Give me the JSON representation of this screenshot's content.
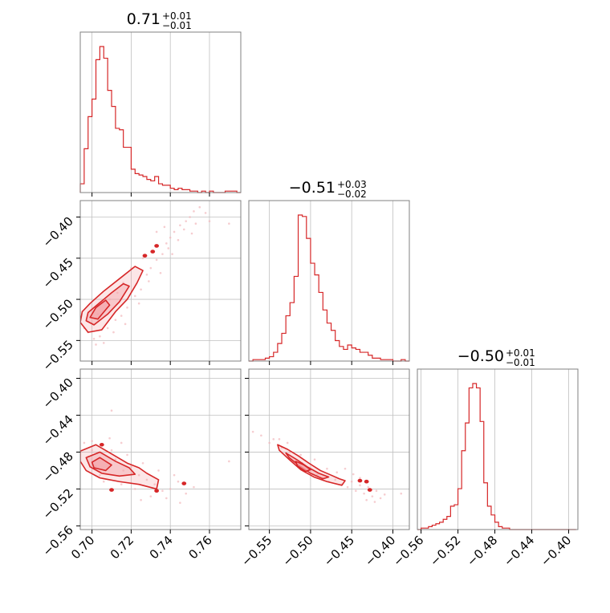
{
  "colors": {
    "accent": "#d62728",
    "accent_fill": "#f4a4a8",
    "scatter": "#f2b8bc"
  },
  "chart_data": {
    "type": "corner",
    "grid": true,
    "parameters": [
      {
        "median": "0.71",
        "plus": "+0.01",
        "minus": "−0.01",
        "range": [
          0.694,
          0.776
        ]
      },
      {
        "median": "−0.51",
        "plus": "+0.03",
        "minus": "−0.02",
        "range": [
          -0.575,
          -0.38
        ]
      },
      {
        "median": "−0.50",
        "plus": "+0.01",
        "minus": "−0.01",
        "range": [
          -0.564,
          -0.39
        ]
      }
    ],
    "ticks": {
      "p0": {
        "values": [
          0.7,
          0.72,
          0.74,
          0.76
        ],
        "labels": [
          "0.70",
          "0.72",
          "0.74",
          "0.76"
        ]
      },
      "p1": {
        "values": [
          -0.55,
          -0.5,
          -0.45,
          -0.4
        ],
        "labels": [
          "−0.55",
          "−0.50",
          "−0.45",
          "−0.40"
        ]
      },
      "p2": {
        "values": [
          -0.56,
          -0.52,
          -0.48,
          -0.44,
          -0.4
        ],
        "labels": [
          "−0.56",
          "−0.52",
          "−0.48",
          "−0.44",
          "−0.40"
        ]
      }
    },
    "histograms": [
      {
        "param": 0,
        "bin_edges": [
          0.694,
          0.696,
          0.698,
          0.7,
          0.702,
          0.704,
          0.706,
          0.708,
          0.71,
          0.712,
          0.714,
          0.716,
          0.718,
          0.72,
          0.722,
          0.724,
          0.726,
          0.728,
          0.73,
          0.732,
          0.734,
          0.736,
          0.738,
          0.74,
          0.742,
          0.744,
          0.746,
          0.748,
          0.75,
          0.752,
          0.754,
          0.756,
          0.758,
          0.76,
          0.762,
          0.764,
          0.766,
          0.768,
          0.77,
          0.772,
          0.774,
          0.776
        ],
        "counts": [
          6,
          30,
          52,
          64,
          91,
          100,
          92,
          70,
          59,
          44,
          43,
          31,
          31,
          16,
          13,
          12,
          11,
          9,
          8,
          11,
          6,
          5,
          5,
          3,
          2,
          3,
          2,
          2,
          1,
          1,
          0,
          1,
          0,
          1,
          0,
          0,
          0,
          1,
          1,
          1,
          0
        ]
      },
      {
        "param": 1,
        "bin_edges": [
          -0.575,
          -0.57,
          -0.565,
          -0.56,
          -0.555,
          -0.55,
          -0.545,
          -0.54,
          -0.535,
          -0.53,
          -0.525,
          -0.52,
          -0.515,
          -0.51,
          -0.505,
          -0.5,
          -0.495,
          -0.49,
          -0.485,
          -0.48,
          -0.475,
          -0.47,
          -0.465,
          -0.46,
          -0.455,
          -0.45,
          -0.445,
          -0.44,
          -0.435,
          -0.43,
          -0.425,
          -0.42,
          -0.415,
          -0.41,
          -0.405,
          -0.4,
          -0.395,
          -0.39,
          -0.385,
          -0.38
        ],
        "counts": [
          0,
          1,
          1,
          1,
          2,
          3,
          6,
          12,
          19,
          31,
          40,
          58,
          100,
          99,
          84,
          67,
          59,
          47,
          35,
          26,
          21,
          14,
          10,
          8,
          11,
          9,
          8,
          6,
          6,
          4,
          2,
          2,
          1,
          1,
          1,
          0,
          0,
          1,
          0
        ]
      },
      {
        "param": 2,
        "bin_edges": [
          -0.564,
          -0.56,
          -0.556,
          -0.552,
          -0.548,
          -0.544,
          -0.54,
          -0.536,
          -0.532,
          -0.528,
          -0.524,
          -0.52,
          -0.516,
          -0.512,
          -0.508,
          -0.504,
          -0.5,
          -0.496,
          -0.492,
          -0.488,
          -0.484,
          -0.48,
          -0.476,
          -0.472,
          -0.468,
          -0.464,
          -0.46,
          -0.456,
          -0.452,
          -0.448,
          -0.444,
          -0.44,
          -0.436,
          -0.432,
          -0.428,
          -0.424,
          -0.42,
          -0.416,
          -0.412,
          -0.408,
          -0.404,
          -0.4,
          -0.396,
          -0.392
        ],
        "counts": [
          0,
          1,
          1,
          2,
          3,
          4,
          5,
          7,
          9,
          16,
          17,
          28,
          54,
          73,
          97,
          100,
          97,
          74,
          32,
          16,
          10,
          5,
          2,
          1,
          1,
          0,
          0,
          0,
          0,
          0,
          0,
          0,
          0,
          0,
          0,
          0,
          0,
          0,
          0,
          0,
          0,
          0,
          0
        ]
      }
    ],
    "pairs": [
      {
        "x_param": 0,
        "y_param": 1,
        "contours": [
          [
            [
              0.694,
              -0.528
            ],
            [
              0.698,
              -0.54
            ],
            [
              0.705,
              -0.537
            ],
            [
              0.712,
              -0.515
            ],
            [
              0.718,
              -0.5
            ],
            [
              0.723,
              -0.48
            ],
            [
              0.726,
              -0.465
            ],
            [
              0.722,
              -0.46
            ],
            [
              0.714,
              -0.475
            ],
            [
              0.706,
              -0.49
            ],
            [
              0.699,
              -0.505
            ],
            [
              0.695,
              -0.515
            ]
          ],
          [
            [
              0.697,
              -0.526
            ],
            [
              0.701,
              -0.531
            ],
            [
              0.708,
              -0.518
            ],
            [
              0.714,
              -0.503
            ],
            [
              0.719,
              -0.484
            ],
            [
              0.716,
              -0.481
            ],
            [
              0.71,
              -0.492
            ],
            [
              0.703,
              -0.506
            ],
            [
              0.698,
              -0.516
            ]
          ],
          [
            [
              0.699,
              -0.522
            ],
            [
              0.703,
              -0.524
            ],
            [
              0.709,
              -0.507
            ],
            [
              0.707,
              -0.501
            ],
            [
              0.702,
              -0.51
            ]
          ]
        ],
        "islands": [
          [
            0.727,
            -0.447
          ],
          [
            0.731,
            -0.442
          ],
          [
            0.733,
            -0.435
          ]
        ],
        "scatter": [
          [
            0.698,
            -0.54
          ],
          [
            0.701,
            -0.548
          ],
          [
            0.704,
            -0.545
          ],
          [
            0.708,
            -0.535
          ],
          [
            0.712,
            -0.525
          ],
          [
            0.715,
            -0.52
          ],
          [
            0.718,
            -0.51
          ],
          [
            0.722,
            -0.496
          ],
          [
            0.725,
            -0.488
          ],
          [
            0.728,
            -0.47
          ],
          [
            0.73,
            -0.462
          ],
          [
            0.733,
            -0.452
          ],
          [
            0.736,
            -0.445
          ],
          [
            0.738,
            -0.432
          ],
          [
            0.74,
            -0.425
          ],
          [
            0.742,
            -0.418
          ],
          [
            0.745,
            -0.41
          ],
          [
            0.748,
            -0.405
          ],
          [
            0.75,
            -0.4
          ],
          [
            0.752,
            -0.393
          ],
          [
            0.755,
            -0.388
          ],
          [
            0.758,
            -0.395
          ],
          [
            0.76,
            -0.405
          ],
          [
            0.735,
            -0.468
          ],
          [
            0.729,
            -0.478
          ],
          [
            0.724,
            -0.505
          ],
          [
            0.717,
            -0.53
          ],
          [
            0.711,
            -0.54
          ],
          [
            0.706,
            -0.553
          ],
          [
            0.72,
            -0.462
          ],
          [
            0.726,
            -0.45
          ],
          [
            0.733,
            -0.418
          ],
          [
            0.739,
            -0.438
          ],
          [
            0.744,
            -0.428
          ],
          [
            0.747,
            -0.415
          ],
          [
            0.753,
            -0.408
          ],
          [
            0.716,
            -0.48
          ],
          [
            0.713,
            -0.492
          ],
          [
            0.709,
            -0.5
          ],
          [
            0.703,
            -0.518
          ],
          [
            0.696,
            -0.535
          ],
          [
            0.702,
            -0.555
          ],
          [
            0.741,
            -0.445
          ],
          [
            0.737,
            -0.412
          ],
          [
            0.751,
            -0.42
          ],
          [
            0.77,
            -0.408
          ]
        ]
      },
      {
        "x_param": 0,
        "y_param": 2,
        "contours": [
          [
            [
              0.694,
              -0.479
            ],
            [
              0.702,
              -0.472
            ],
            [
              0.71,
              -0.482
            ],
            [
              0.718,
              -0.492
            ],
            [
              0.724,
              -0.497
            ],
            [
              0.728,
              -0.503
            ],
            [
              0.734,
              -0.51
            ],
            [
              0.733,
              -0.52
            ],
            [
              0.724,
              -0.515
            ],
            [
              0.714,
              -0.512
            ],
            [
              0.704,
              -0.508
            ],
            [
              0.697,
              -0.5
            ],
            [
              0.694,
              -0.49
            ]
          ],
          [
            [
              0.697,
              -0.486
            ],
            [
              0.704,
              -0.48
            ],
            [
              0.712,
              -0.49
            ],
            [
              0.719,
              -0.497
            ],
            [
              0.722,
              -0.504
            ],
            [
              0.714,
              -0.506
            ],
            [
              0.705,
              -0.503
            ],
            [
              0.699,
              -0.496
            ]
          ],
          [
            [
              0.7,
              -0.491
            ],
            [
              0.704,
              -0.486
            ],
            [
              0.71,
              -0.494
            ],
            [
              0.707,
              -0.5
            ],
            [
              0.701,
              -0.497
            ]
          ]
        ],
        "islands": [
          [
            0.705,
            -0.472
          ],
          [
            0.747,
            -0.514
          ],
          [
            0.71,
            -0.521
          ],
          [
            0.733,
            -0.522
          ]
        ],
        "scatter": [
          [
            0.696,
            -0.47
          ],
          [
            0.7,
            -0.478
          ],
          [
            0.704,
            -0.505
          ],
          [
            0.708,
            -0.498
          ],
          [
            0.712,
            -0.488
          ],
          [
            0.716,
            -0.5
          ],
          [
            0.72,
            -0.496
          ],
          [
            0.724,
            -0.505
          ],
          [
            0.728,
            -0.51
          ],
          [
            0.732,
            -0.515
          ],
          [
            0.736,
            -0.522
          ],
          [
            0.74,
            -0.52
          ],
          [
            0.744,
            -0.512
          ],
          [
            0.748,
            -0.525
          ],
          [
            0.752,
            -0.518
          ],
          [
            0.738,
            -0.53
          ],
          [
            0.73,
            -0.528
          ],
          [
            0.722,
            -0.52
          ],
          [
            0.715,
            -0.515
          ],
          [
            0.706,
            -0.512
          ],
          [
            0.702,
            -0.495
          ],
          [
            0.71,
            -0.478
          ],
          [
            0.718,
            -0.483
          ],
          [
            0.726,
            -0.492
          ],
          [
            0.734,
            -0.5
          ],
          [
            0.742,
            -0.505
          ],
          [
            0.698,
            -0.485
          ],
          [
            0.7,
            -0.468
          ],
          [
            0.709,
            -0.465
          ],
          [
            0.715,
            -0.47
          ],
          [
            0.77,
            -0.49
          ],
          [
            0.71,
            -0.435
          ],
          [
            0.745,
            -0.535
          ],
          [
            0.725,
            -0.532
          ]
        ]
      },
      {
        "x_param": 1,
        "y_param": 2,
        "contours": [
          [
            [
              -0.54,
              -0.472
            ],
            [
              -0.528,
              -0.477
            ],
            [
              -0.515,
              -0.484
            ],
            [
              -0.502,
              -0.492
            ],
            [
              -0.488,
              -0.5
            ],
            [
              -0.475,
              -0.505
            ],
            [
              -0.465,
              -0.509
            ],
            [
              -0.458,
              -0.511
            ],
            [
              -0.462,
              -0.516
            ],
            [
              -0.48,
              -0.512
            ],
            [
              -0.496,
              -0.507
            ],
            [
              -0.512,
              -0.499
            ],
            [
              -0.526,
              -0.488
            ],
            [
              -0.538,
              -0.478
            ]
          ],
          [
            [
              -0.53,
              -0.481
            ],
            [
              -0.517,
              -0.488
            ],
            [
              -0.504,
              -0.496
            ],
            [
              -0.49,
              -0.503
            ],
            [
              -0.478,
              -0.507
            ],
            [
              -0.485,
              -0.509
            ],
            [
              -0.5,
              -0.503
            ],
            [
              -0.515,
              -0.494
            ],
            [
              -0.526,
              -0.486
            ]
          ],
          [
            [
              -0.518,
              -0.49
            ],
            [
              -0.508,
              -0.494
            ],
            [
              -0.5,
              -0.499
            ],
            [
              -0.506,
              -0.501
            ],
            [
              -0.516,
              -0.495
            ]
          ]
        ],
        "islands": [
          [
            -0.44,
            -0.511
          ],
          [
            -0.432,
            -0.512
          ],
          [
            -0.428,
            -0.521
          ]
        ],
        "scatter": [
          [
            -0.56,
            -0.462
          ],
          [
            -0.55,
            -0.47
          ],
          [
            -0.545,
            -0.466
          ],
          [
            -0.535,
            -0.475
          ],
          [
            -0.525,
            -0.48
          ],
          [
            -0.52,
            -0.49
          ],
          [
            -0.51,
            -0.492
          ],
          [
            -0.5,
            -0.5
          ],
          [
            -0.492,
            -0.505
          ],
          [
            -0.485,
            -0.508
          ],
          [
            -0.478,
            -0.512
          ],
          [
            -0.47,
            -0.51
          ],
          [
            -0.462,
            -0.515
          ],
          [
            -0.455,
            -0.518
          ],
          [
            -0.45,
            -0.512
          ],
          [
            -0.445,
            -0.522
          ],
          [
            -0.44,
            -0.516
          ],
          [
            -0.435,
            -0.525
          ],
          [
            -0.43,
            -0.518
          ],
          [
            -0.425,
            -0.528
          ],
          [
            -0.42,
            -0.522
          ],
          [
            -0.415,
            -0.53
          ],
          [
            -0.44,
            -0.508
          ],
          [
            -0.448,
            -0.504
          ],
          [
            -0.458,
            -0.498
          ],
          [
            -0.468,
            -0.502
          ],
          [
            -0.48,
            -0.498
          ],
          [
            -0.495,
            -0.488
          ],
          [
            -0.512,
            -0.483
          ],
          [
            -0.528,
            -0.47
          ],
          [
            -0.538,
            -0.466
          ],
          [
            -0.432,
            -0.532
          ],
          [
            -0.422,
            -0.534
          ],
          [
            -0.41,
            -0.526
          ],
          [
            -0.39,
            -0.525
          ],
          [
            -0.57,
            -0.458
          ]
        ]
      }
    ]
  }
}
